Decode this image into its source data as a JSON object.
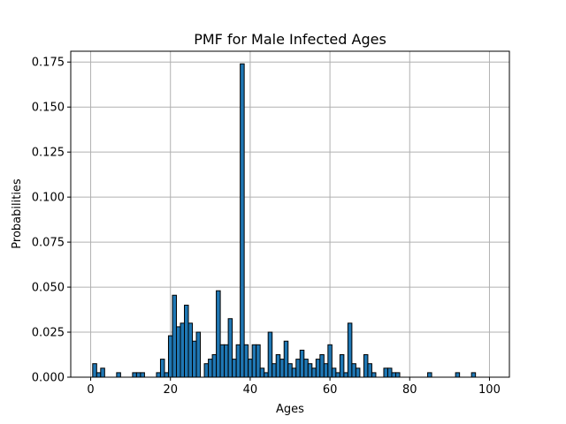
{
  "chart_data": {
    "type": "bar",
    "title": "PMF for Male Infected Ages",
    "xlabel": "Ages",
    "ylabel": "Probabilities",
    "xlim": [
      -5,
      105
    ],
    "ylim": [
      0,
      0.181
    ],
    "xticks": [
      0,
      20,
      40,
      60,
      80,
      100
    ],
    "xtick_labels": [
      "0",
      "20",
      "40",
      "60",
      "80",
      "100"
    ],
    "yticks": [
      0.0,
      0.025,
      0.05,
      0.075,
      0.1,
      0.125,
      0.15,
      0.175
    ],
    "ytick_labels": [
      "0.000",
      "0.025",
      "0.050",
      "0.075",
      "0.100",
      "0.125",
      "0.150",
      "0.175"
    ],
    "grid": true,
    "bar_color": "#1f77b4",
    "edge_color": "#000000",
    "bin_width": 1,
    "x": [
      1,
      2,
      3,
      7,
      11,
      12,
      13,
      17,
      18,
      19,
      20,
      21,
      22,
      23,
      24,
      25,
      26,
      27,
      29,
      30,
      31,
      32,
      33,
      34,
      35,
      36,
      37,
      38,
      39,
      40,
      41,
      42,
      43,
      44,
      45,
      46,
      47,
      48,
      49,
      50,
      51,
      52,
      53,
      54,
      55,
      56,
      57,
      58,
      59,
      60,
      61,
      62,
      63,
      64,
      65,
      66,
      67,
      69,
      70,
      71,
      74,
      75,
      76,
      77,
      85,
      92,
      96
    ],
    "values": [
      0.0075,
      0.0025,
      0.005,
      0.0025,
      0.0025,
      0.0025,
      0.0025,
      0.0025,
      0.01,
      0.0025,
      0.023,
      0.0455,
      0.028,
      0.03,
      0.04,
      0.03,
      0.02,
      0.025,
      0.0075,
      0.01,
      0.0125,
      0.048,
      0.018,
      0.018,
      0.0325,
      0.01,
      0.018,
      0.174,
      0.018,
      0.01,
      0.018,
      0.018,
      0.005,
      0.0025,
      0.025,
      0.0075,
      0.0125,
      0.01,
      0.02,
      0.0075,
      0.005,
      0.01,
      0.015,
      0.01,
      0.0075,
      0.005,
      0.01,
      0.0125,
      0.0075,
      0.018,
      0.005,
      0.0025,
      0.0125,
      0.0025,
      0.03,
      0.0075,
      0.005,
      0.0125,
      0.0075,
      0.0025,
      0.005,
      0.005,
      0.0025,
      0.0025,
      0.0025,
      0.0025,
      0.0025
    ]
  }
}
